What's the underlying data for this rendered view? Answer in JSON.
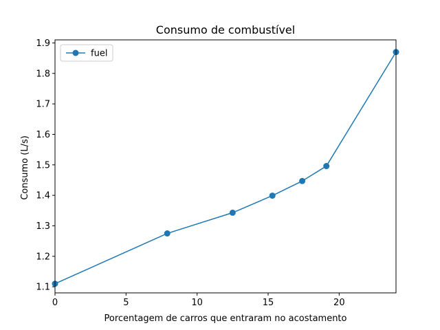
{
  "chart_data": {
    "type": "line",
    "title": "Consumo de combustível",
    "xlabel": "Porcentagem de carros que entraram no acostamento",
    "ylabel": "Consumo (L/s)",
    "xlim": [
      0,
      24
    ],
    "ylim": [
      1.08,
      1.91
    ],
    "xticks": [
      0,
      5,
      10,
      15,
      20
    ],
    "xtick_labels": [
      "0",
      "5",
      "10",
      "15",
      "20"
    ],
    "yticks": [
      1.1,
      1.2,
      1.3,
      1.4,
      1.5,
      1.6,
      1.7,
      1.8,
      1.9
    ],
    "ytick_labels": [
      "1.1",
      "1.2",
      "1.3",
      "1.4",
      "1.5",
      "1.6",
      "1.7",
      "1.8",
      "1.9"
    ],
    "grid": false,
    "legend_position": "top-left",
    "series": [
      {
        "name": "fuel",
        "color": "#1f77b4",
        "marker": "circle",
        "x": [
          0,
          7.9,
          12.5,
          15.3,
          17.4,
          19.1,
          24.0
        ],
        "y": [
          1.11,
          1.275,
          1.343,
          1.399,
          1.447,
          1.496,
          1.87
        ]
      }
    ]
  }
}
